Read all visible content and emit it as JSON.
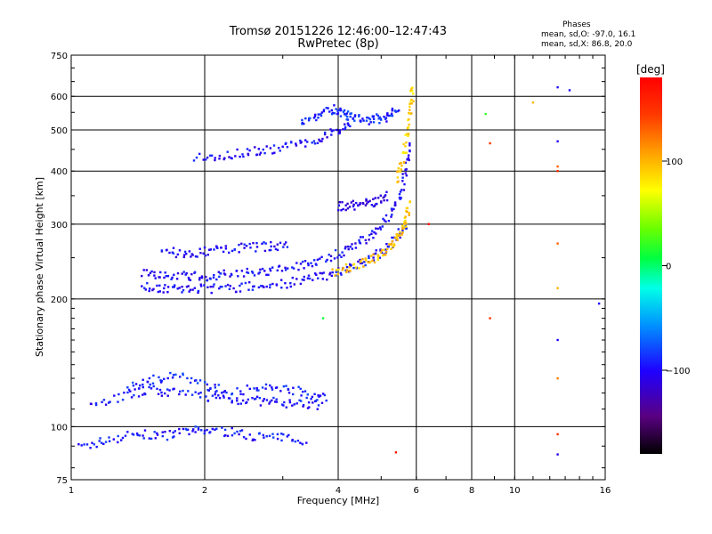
{
  "chart_data": {
    "type": "scatter",
    "title": "Tromsø 20151226 12:46:00–12:47:43",
    "subtitle": "RwPretec (8p)",
    "xlabel": "Frequency [MHz]",
    "ylabel": "Stationary phase Virtual Height [km]",
    "x_scale": "log",
    "y_scale": "log",
    "xlim": [
      1,
      16
    ],
    "ylim": [
      75,
      750
    ],
    "x_ticks": [
      1,
      2,
      4,
      6,
      8,
      10,
      16
    ],
    "x_tick_labels": [
      "1",
      "2",
      "4",
      "6",
      "8",
      "10",
      "16"
    ],
    "y_ticks": [
      75,
      100,
      200,
      300,
      400,
      500,
      600,
      750
    ],
    "y_tick_labels": [
      "75",
      "100",
      "200",
      "300",
      "400",
      "500",
      "600",
      "750"
    ],
    "grid": true,
    "colorbar": {
      "label": "[deg]",
      "range": [
        -180,
        180
      ],
      "ticks": [
        100,
        0,
        -100
      ],
      "tick_labels": [
        "100",
        "0",
        "−100"
      ],
      "colors": [
        "#000000",
        "#5a0082",
        "#1f00ff",
        "#0090ff",
        "#00ffe8",
        "#00ff40",
        "#6cff00",
        "#ffff00",
        "#ffa000",
        "#ff3a00",
        "#ff0000"
      ]
    },
    "phases_stats": {
      "heading": "Phases",
      "o_mode": "mean, sd,O:  -97.0, 16.1",
      "x_mode": "mean, sd,X:   86.8, 20.0"
    },
    "traces": [
      {
        "name": "",
        "x": [
          1.05,
          1.2,
          1.4,
          1.6,
          1.8,
          2.0,
          2.3,
          2.6,
          3.0,
          3.4
        ],
        "y": [
          89,
          93,
          96,
          95,
          97,
          98,
          97,
          95,
          94,
          93
        ],
        "phase": -95
      },
      {
        "name": "",
        "x": [
          1.1,
          1.3,
          1.5,
          1.7,
          2.0,
          2.3,
          2.6,
          2.9,
          3.3,
          3.7
        ],
        "y": [
          112,
          118,
          122,
          120,
          118,
          116,
          115,
          114,
          113,
          112
        ],
        "phase": -95
      },
      {
        "name": "",
        "x": [
          1.35,
          1.5,
          1.7,
          2.0,
          2.2,
          2.6,
          3.0,
          3.4,
          3.8
        ],
        "y": [
          123,
          128,
          133,
          125,
          122,
          122,
          124,
          120,
          116
        ],
        "phase": -90
      },
      {
        "name": "",
        "x": [
          1.45,
          1.6,
          1.8,
          2.0,
          2.3,
          2.6,
          3.0,
          3.4,
          3.8,
          4.2,
          4.6,
          5.0,
          5.4,
          5.7
        ],
        "y": [
          213,
          212,
          211,
          211,
          212,
          214,
          217,
          222,
          228,
          236,
          245,
          258,
          276,
          298
        ],
        "phase": -100
      },
      {
        "name": "",
        "x": [
          1.45,
          1.6,
          1.8,
          2.0,
          2.2,
          2.5,
          2.8,
          3.2,
          3.6,
          4.0,
          4.4,
          4.8,
          5.2,
          5.5,
          5.7,
          5.8
        ],
        "y": [
          232,
          228,
          226,
          226,
          228,
          230,
          232,
          238,
          246,
          256,
          268,
          285,
          310,
          345,
          400,
          470
        ],
        "phase": -100
      },
      {
        "name": "",
        "x": [
          1.9,
          2.2,
          2.5,
          2.8,
          3.2,
          3.6,
          4.0,
          4.3
        ],
        "y": [
          428,
          436,
          443,
          450,
          460,
          475,
          500,
          520
        ],
        "phase": -100
      },
      {
        "name": "",
        "x": [
          3.3,
          3.6,
          3.9,
          4.1,
          4.3,
          4.6,
          4.9,
          5.2,
          5.5
        ],
        "y": [
          525,
          540,
          560,
          545,
          535,
          525,
          530,
          540,
          560
        ],
        "phase": -90
      },
      {
        "name": "",
        "x": [
          1.6,
          1.8,
          2.0,
          2.2,
          2.5,
          2.8,
          3.1
        ],
        "y": [
          260,
          255,
          258,
          262,
          265,
          266,
          268
        ],
        "phase": -100
      },
      {
        "name": "",
        "x": [
          4.0,
          4.3,
          4.6,
          4.9,
          5.2
        ],
        "y": [
          330,
          332,
          336,
          340,
          350
        ],
        "phase": -110
      },
      {
        "name": "",
        "x": [
          3.9,
          4.3,
          4.7,
          5.0,
          5.3,
          5.5,
          5.7,
          5.8
        ],
        "y": [
          232,
          238,
          245,
          255,
          268,
          285,
          305,
          340
        ],
        "phase": 95
      },
      {
        "name": "",
        "x": [
          5.4,
          5.6,
          5.75,
          5.85,
          5.9
        ],
        "y": [
          380,
          430,
          500,
          580,
          640
        ],
        "phase": 90
      }
    ],
    "scattered_points": [
      {
        "x": 8.6,
        "y": 545,
        "phase": 20
      },
      {
        "x": 8.8,
        "y": 465,
        "phase": 150
      },
      {
        "x": 8.8,
        "y": 180,
        "phase": 150
      },
      {
        "x": 11.0,
        "y": 580,
        "phase": 100
      },
      {
        "x": 12.5,
        "y": 630,
        "phase": -100
      },
      {
        "x": 12.5,
        "y": 470,
        "phase": -100
      },
      {
        "x": 12.5,
        "y": 410,
        "phase": 130
      },
      {
        "x": 12.5,
        "y": 400,
        "phase": 150
      },
      {
        "x": 12.5,
        "y": 270,
        "phase": 130
      },
      {
        "x": 12.5,
        "y": 212,
        "phase": 100
      },
      {
        "x": 12.5,
        "y": 160,
        "phase": -100
      },
      {
        "x": 12.5,
        "y": 130,
        "phase": 120
      },
      {
        "x": 12.5,
        "y": 96,
        "phase": 150
      },
      {
        "x": 12.5,
        "y": 86,
        "phase": -110
      },
      {
        "x": 13.3,
        "y": 620,
        "phase": -100
      },
      {
        "x": 15.5,
        "y": 195,
        "phase": -100
      },
      {
        "x": 6.4,
        "y": 300,
        "phase": 170
      },
      {
        "x": 5.4,
        "y": 87,
        "phase": 170
      },
      {
        "x": 3.7,
        "y": 180,
        "phase": 10
      }
    ]
  }
}
